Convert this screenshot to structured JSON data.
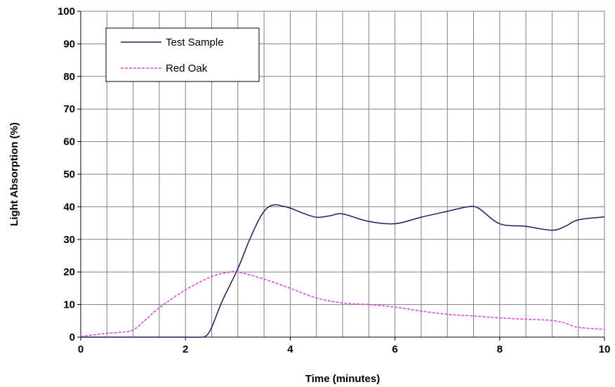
{
  "chart_data": {
    "type": "line",
    "title": "",
    "xlabel": "Time (minutes)",
    "ylabel": "Light Absorption  (%)",
    "xlim": [
      0,
      10
    ],
    "ylim": [
      0,
      100
    ],
    "x_ticks": [
      0,
      2,
      4,
      6,
      8,
      10
    ],
    "y_ticks": [
      0,
      10,
      20,
      30,
      40,
      50,
      60,
      70,
      80,
      90,
      100
    ],
    "x_grid_step": 0.5,
    "y_grid_step": 10,
    "grid": true,
    "legend_position": "top-left",
    "series": [
      {
        "name": "Test Sample",
        "color": "#1f1f5c",
        "dash": "solid",
        "points": [
          [
            0,
            0
          ],
          [
            0.5,
            0
          ],
          [
            1,
            0
          ],
          [
            1.5,
            0
          ],
          [
            2,
            0
          ],
          [
            2.3,
            0
          ],
          [
            2.4,
            0.5
          ],
          [
            2.5,
            3
          ],
          [
            2.7,
            11
          ],
          [
            3,
            21
          ],
          [
            3.2,
            29
          ],
          [
            3.4,
            36
          ],
          [
            3.55,
            39.5
          ],
          [
            3.7,
            40.6
          ],
          [
            3.85,
            40.2
          ],
          [
            4,
            39.6
          ],
          [
            4.25,
            38
          ],
          [
            4.5,
            36.8
          ],
          [
            4.75,
            37.2
          ],
          [
            5,
            37.8
          ],
          [
            5.5,
            35.5
          ],
          [
            6,
            34.8
          ],
          [
            6.5,
            36.8
          ],
          [
            7,
            38.6
          ],
          [
            7.4,
            40
          ],
          [
            7.6,
            39.5
          ],
          [
            8,
            34.8
          ],
          [
            8.5,
            34
          ],
          [
            9,
            32.8
          ],
          [
            9.25,
            34
          ],
          [
            9.5,
            36
          ],
          [
            10,
            36.9
          ]
        ]
      },
      {
        "name": "Red Oak",
        "color": "#e040e0",
        "dash": "dashed",
        "points": [
          [
            0,
            0.2
          ],
          [
            0.25,
            0.7
          ],
          [
            0.5,
            1.2
          ],
          [
            0.75,
            1.5
          ],
          [
            1,
            2.2
          ],
          [
            1.25,
            5.5
          ],
          [
            1.5,
            9
          ],
          [
            2,
            14.5
          ],
          [
            2.5,
            18.6
          ],
          [
            2.8,
            19.8
          ],
          [
            3,
            20
          ],
          [
            3.5,
            17.8
          ],
          [
            4,
            15
          ],
          [
            4.5,
            12
          ],
          [
            5,
            10.5
          ],
          [
            5.5,
            10
          ],
          [
            6,
            9.2
          ],
          [
            6.5,
            8
          ],
          [
            7,
            7
          ],
          [
            7.5,
            6.5
          ],
          [
            8,
            5.9
          ],
          [
            8.5,
            5.5
          ],
          [
            9,
            5.1
          ],
          [
            9.25,
            4.3
          ],
          [
            9.5,
            3
          ],
          [
            10,
            2.4
          ]
        ]
      }
    ]
  }
}
